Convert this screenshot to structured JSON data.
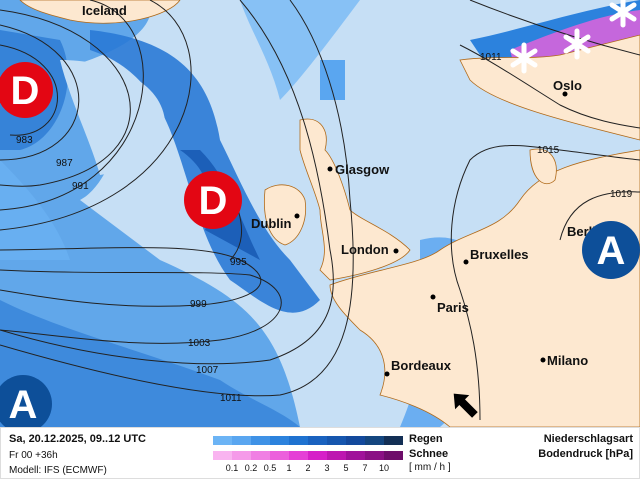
{
  "map": {
    "cities": [
      {
        "name": "Iceland"
      },
      {
        "name": "Oslo"
      },
      {
        "name": "Glasgow"
      },
      {
        "name": "Dublin"
      },
      {
        "name": "London"
      },
      {
        "name": "Bruxelles"
      },
      {
        "name": "Paris"
      },
      {
        "name": "Bordeaux"
      },
      {
        "name": "Milano"
      },
      {
        "name": "Berlin"
      }
    ],
    "isobar_labels": [
      "983",
      "987",
      "991",
      "995",
      "999",
      "1003",
      "1007",
      "1011",
      "1011",
      "1015",
      "1019"
    ],
    "pressure_centers": [
      {
        "type": "low",
        "label": "D",
        "color": "#e30613"
      },
      {
        "type": "low",
        "label": "D",
        "color": "#e30613"
      },
      {
        "type": "high",
        "label": "A",
        "color": "#0d4f99"
      },
      {
        "type": "high",
        "label": "A",
        "color": "#0d4f99"
      }
    ],
    "snow_icon": "asterisk-snow-icon",
    "wind_arrow_icon": "arrow-up-left-icon"
  },
  "legend": {
    "date": "Sa, 20.12.2025, 09..12 UTC",
    "run": "Fr 00 +36h",
    "model": "Modell: IFS (ECMWF)",
    "rain_label": "Regen",
    "snow_label": "Schnee",
    "unit": "[ mm / h ]",
    "title1": "Niederschlagsart",
    "title2": "Bodendruck [hPa]",
    "ticks": [
      "0.1",
      "0.2",
      "0.5",
      "1",
      "2",
      "3",
      "5",
      "7",
      "10"
    ],
    "rain_colors": [
      "#6cb4f5",
      "#5aa6f0",
      "#3f92e6",
      "#2c82dd",
      "#1f72d0",
      "#1a62bf",
      "#1656ae",
      "#13499c",
      "#14467f",
      "#132f55"
    ],
    "snow_colors": [
      "#f9b4f0",
      "#f59ae9",
      "#f07fe3",
      "#ec60dc",
      "#e53fd6",
      "#d61fc8",
      "#bd17b0",
      "#a0129a",
      "#8a1084",
      "#6e0d6a"
    ]
  }
}
